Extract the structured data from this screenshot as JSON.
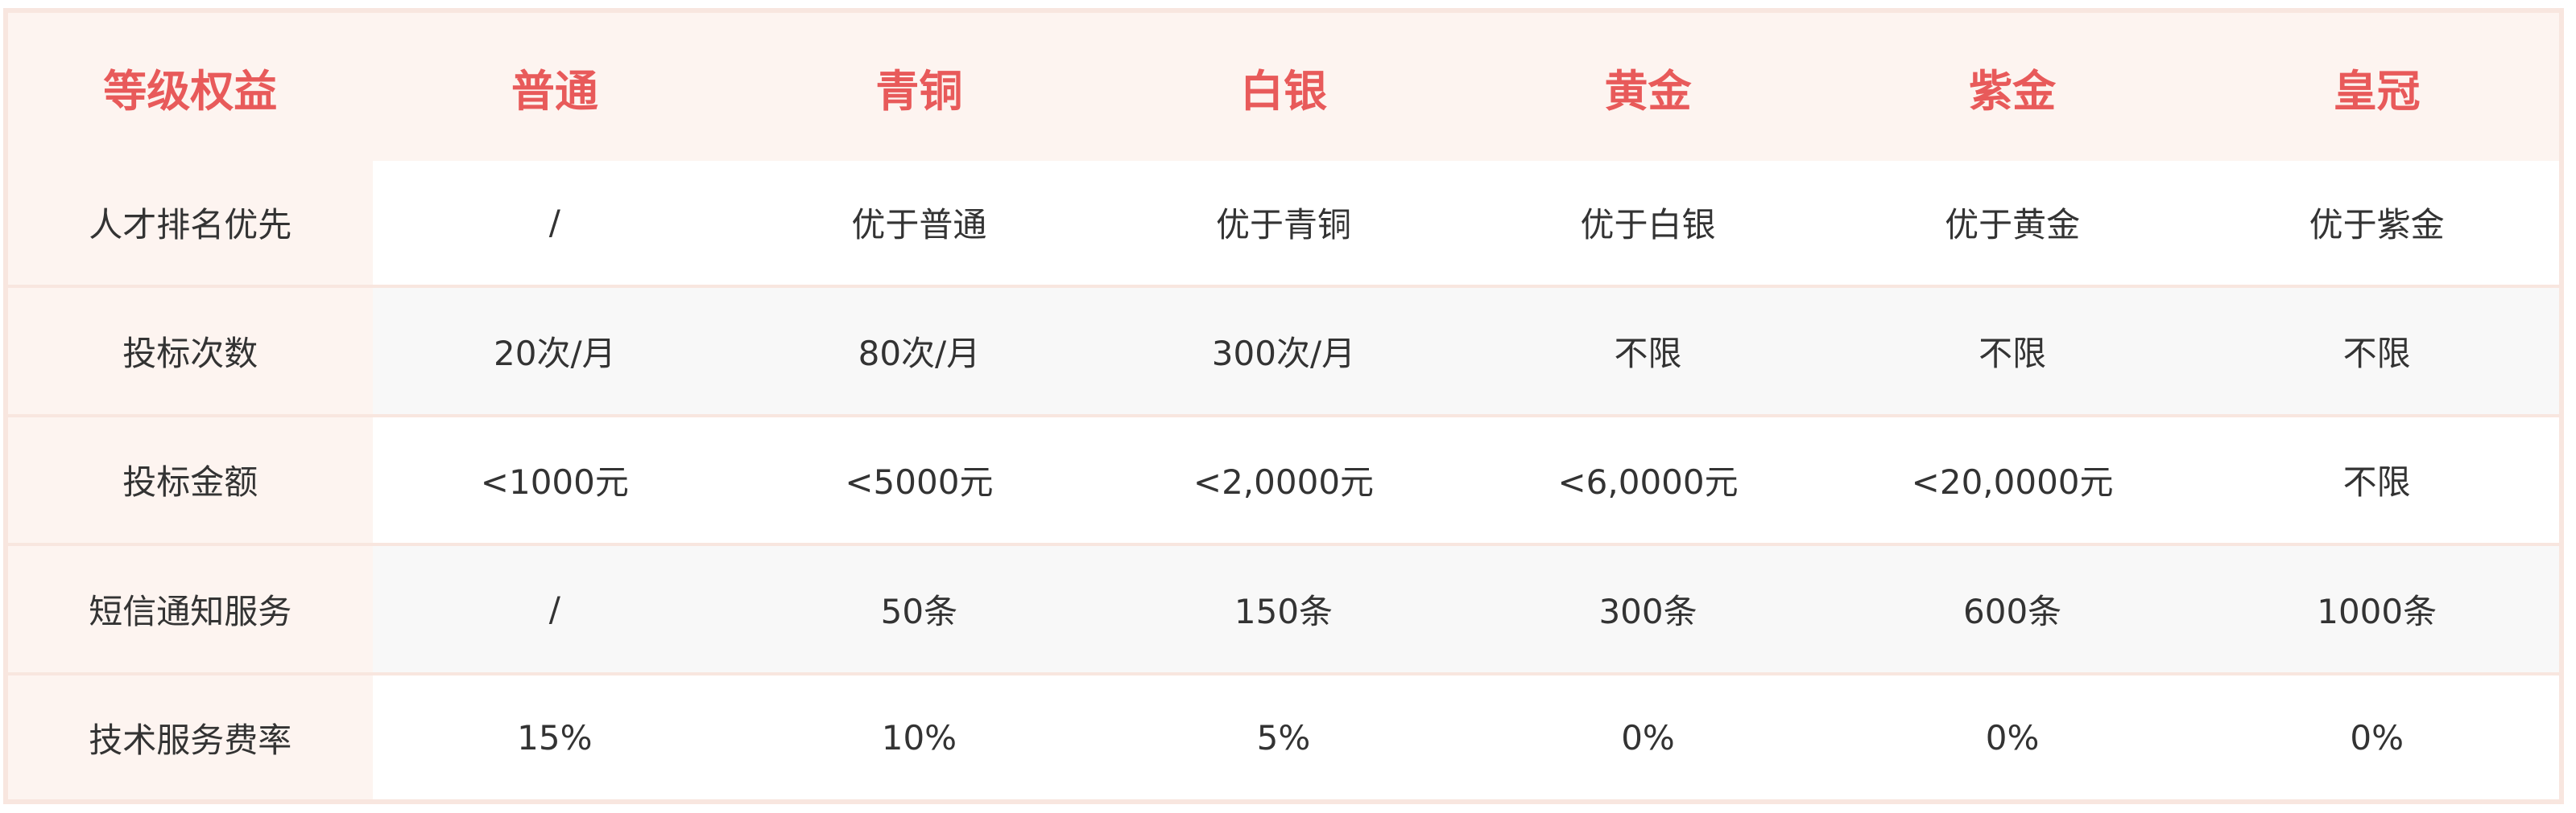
{
  "colors": {
    "accent": "#e85a5a",
    "border": "#f8e6df",
    "label_bg": "#fdf4f0",
    "alt_row": "#f8f8f8",
    "text": "#333333"
  },
  "header": [
    "等级权益",
    "普通",
    "青铜",
    "白银",
    "黄金",
    "紫金",
    "皇冠"
  ],
  "rows": [
    {
      "label": "人才排名优先",
      "values": [
        "/",
        "优于普通",
        "优于青铜",
        "优于白银",
        "优于黄金",
        "优于紫金"
      ]
    },
    {
      "label": "投标次数",
      "values": [
        "20次/月",
        "80次/月",
        "300次/月",
        "不限",
        "不限",
        "不限"
      ]
    },
    {
      "label": "投标金额",
      "values": [
        "<1000元",
        "<5000元",
        "<2,0000元",
        "<6,0000元",
        "<20,0000元",
        "不限"
      ]
    },
    {
      "label": "短信通知服务",
      "values": [
        "/",
        "50条",
        "150条",
        "300条",
        "600条",
        "1000条"
      ]
    },
    {
      "label": "技术服务费率",
      "values": [
        "15%",
        "10%",
        "5%",
        "0%",
        "0%",
        "0%"
      ]
    }
  ]
}
